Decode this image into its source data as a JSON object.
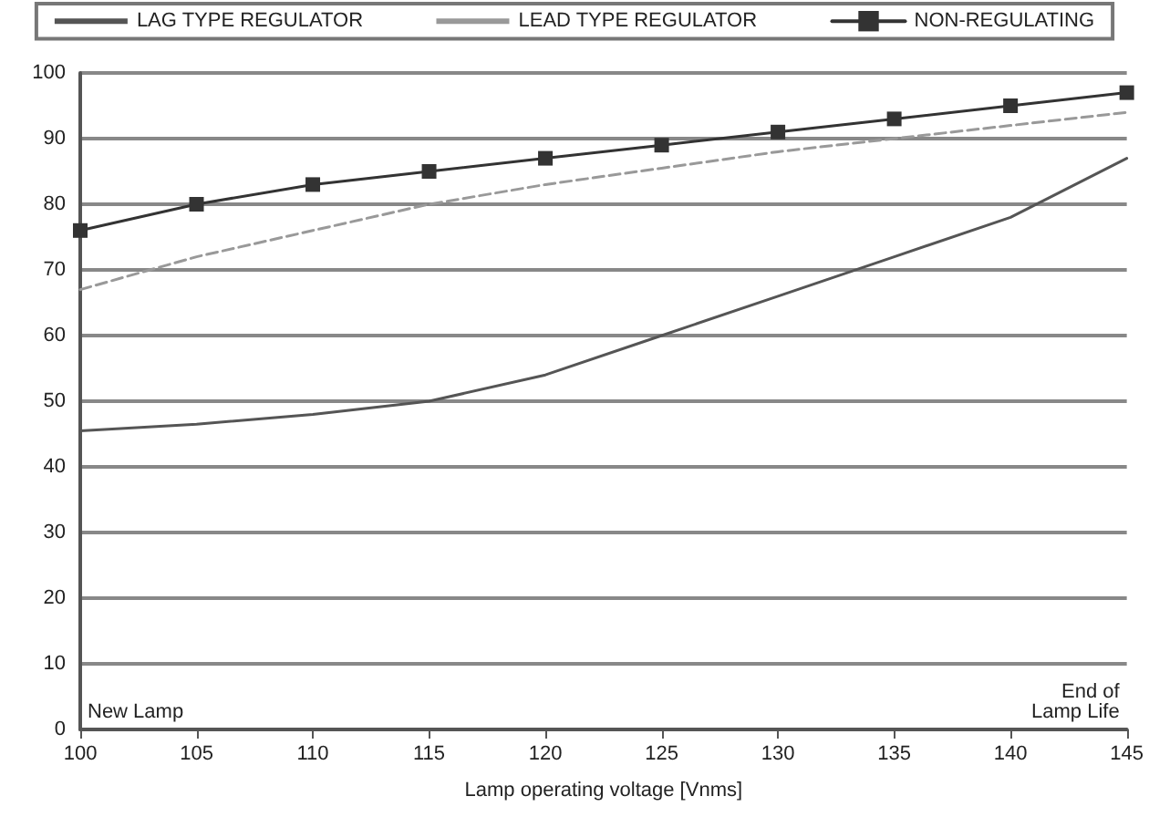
{
  "chart_data": {
    "type": "line",
    "xlabel": "Lamp operating voltage [Vnms]",
    "x": [
      100,
      105,
      110,
      115,
      120,
      125,
      130,
      135,
      140,
      145
    ],
    "series": [
      {
        "name": "LAG TYPE REGULATOR",
        "color": "#555555",
        "marker": "none",
        "line_style": "solid",
        "values": [
          45.5,
          46.5,
          48,
          50,
          54,
          60,
          66,
          72,
          78,
          87
        ]
      },
      {
        "name": "LEAD TYPE REGULATOR",
        "color": "#999999",
        "marker": "none",
        "line_style": "dashed",
        "values": [
          67,
          72,
          76,
          80,
          83,
          85.5,
          88,
          90,
          92,
          94
        ]
      },
      {
        "name": "NON-REGULATING",
        "color": "#333333",
        "marker": "square",
        "line_style": "solid",
        "values": [
          76,
          80,
          83,
          85,
          87,
          89,
          91,
          93,
          95,
          97
        ]
      }
    ],
    "xlim": [
      100,
      145
    ],
    "xticks": [
      100,
      105,
      110,
      115,
      120,
      125,
      130,
      135,
      140,
      145
    ],
    "ylim": [
      0,
      100
    ],
    "yticks": [
      0,
      10,
      20,
      30,
      40,
      50,
      60,
      70,
      80,
      90,
      100
    ],
    "grid": "y",
    "legend": "top",
    "annotations": [
      "New Lamp",
      "End of\nLamp Life"
    ]
  }
}
